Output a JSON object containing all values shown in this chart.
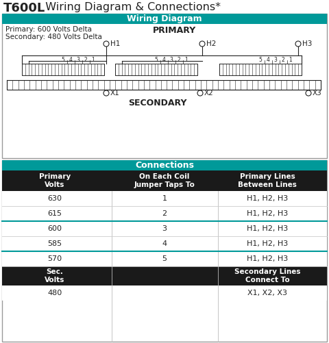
{
  "title_bold": "T600L",
  "title_rest": "  Wiring Diagram & Connections*",
  "wiring_header": "Wiring Diagram",
  "connections_header": "Connections",
  "primary_label": "PRIMARY",
  "secondary_label": "SECONDARY",
  "primary_info_line1": "Primary: 600 Volts Delta",
  "primary_info_line2": "Secondary: 480 Volts Delta",
  "teal_color": "#009999",
  "black_color": "#222222",
  "white_color": "#ffffff",
  "dark_gray": "#555555",
  "table_header_bg": "#1a1a1a",
  "table_headers": [
    "Primary\nVolts",
    "On Each Coil\nJumper Taps To",
    "Primary Lines\nBetween Lines"
  ],
  "table_rows": [
    [
      "630",
      "1",
      "H1, H2, H3"
    ],
    [
      "615",
      "2",
      "H1, H2, H3"
    ],
    [
      "600",
      "3",
      "H1, H2, H3"
    ],
    [
      "585",
      "4",
      "H1, H2, H3"
    ],
    [
      "570",
      "5",
      "H1, H2, H3"
    ]
  ],
  "teal_divider_after": [
    1,
    3
  ],
  "sec_header": [
    "Sec.\nVolts",
    "",
    "Secondary Lines\nConnect To"
  ],
  "sec_row": [
    "480",
    "",
    "X1, X2, X3"
  ],
  "h_labels": [
    "H1",
    "H2",
    "H3"
  ],
  "x_labels": [
    "X1",
    "X2",
    "X3"
  ],
  "coil_taps": [
    "5",
    "4",
    "3",
    "2",
    "1"
  ]
}
